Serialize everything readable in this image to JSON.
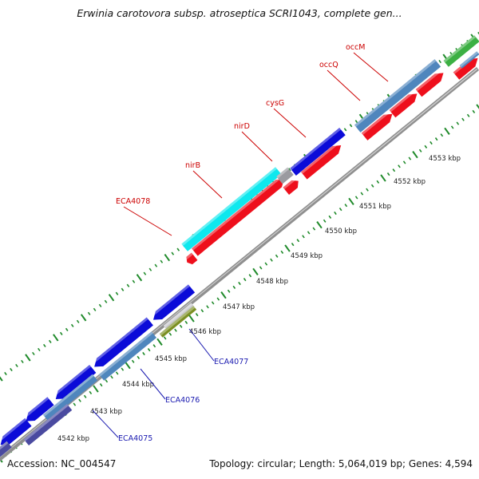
{
  "title": "Erwinia carotovora subsp. atroseptica SCRI1043, complete gen...",
  "footer": {
    "accession_text": "Accession: NC_004547",
    "stats_text": "Topology: circular; Length: 5,064,019 bp; Genes: 4,594"
  },
  "colors": {
    "forward_cds": "#ee0f1c",
    "reverse_cds": "#0b0bd8",
    "forward_label": "#cc0000",
    "reverse_label": "#1a1ab0",
    "cyan_feature": "#0ee8ee",
    "steelblue_feature": "#4f86bd",
    "tick_green": "#1f8a2a",
    "backbone": "#888888"
  },
  "kbp_labels": [
    "4542 kbp",
    "4543 kbp",
    "4544 kbp",
    "4545 kbp",
    "4546 kbp",
    "4547 kbp",
    "4548 kbp",
    "4549 kbp",
    "4550 kbp",
    "4551 kbp",
    "4552 kbp",
    "4553 kbp"
  ],
  "forward_genes": [
    "ECA4078",
    "nirB",
    "nirD",
    "cysG",
    "occQ",
    "occM"
  ],
  "reverse_genes": [
    "ECA4077",
    "ECA4076",
    "ECA4075"
  ]
}
